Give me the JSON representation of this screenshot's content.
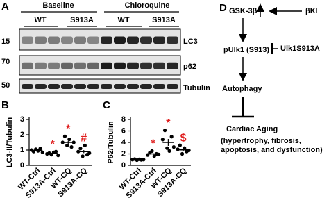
{
  "panel_a": {
    "label": "A",
    "groups": [
      "Baseline",
      "Chloroquine"
    ],
    "genotypes": [
      "WT",
      "S913A",
      "WT",
      "S913A"
    ],
    "markers": [
      "15",
      "70",
      "50"
    ],
    "blots": [
      "LC3",
      "p62",
      "Tubulin"
    ]
  },
  "chart_data": [
    {
      "type": "scatter",
      "panel_label": "B",
      "y_label": "LC3-II/Tubulin",
      "categories": [
        "WT-Ctrl",
        "S913A-Ctrl",
        "WT-CQ",
        "S913A-CQ"
      ],
      "values": [
        [
          1.0,
          0.9,
          1.05,
          0.95,
          1.1,
          0.85
        ],
        [
          0.75,
          0.8,
          0.7,
          0.85,
          0.9,
          0.65
        ],
        [
          1.5,
          1.9,
          1.3,
          1.7,
          1.2,
          1.5
        ],
        [
          0.9,
          1.1,
          0.6,
          1.3,
          0.7,
          0.8
        ]
      ],
      "means": [
        0.98,
        0.78,
        1.5,
        0.9
      ],
      "errors": [
        0.04,
        0.04,
        0.1,
        0.1
      ],
      "annotations": [
        null,
        "*",
        "*",
        "#"
      ],
      "annotation_color": "#e02020",
      "color": "#000000",
      "ylim": [
        0,
        3
      ],
      "yticks": [
        0,
        1,
        2,
        3
      ]
    },
    {
      "type": "scatter",
      "panel_label": "C",
      "y_label": "P62/Tubulin",
      "categories": [
        "WT-Ctrl",
        "S913A-Ctrl",
        "WT-CQ",
        "S913A-CQ"
      ],
      "values": [
        [
          1.0,
          1.1,
          0.9,
          1.05,
          0.95,
          1.0
        ],
        [
          1.8,
          2.2,
          2.5,
          1.6,
          2.0,
          1.9
        ],
        [
          4.5,
          6.1,
          3.0,
          2.5,
          5.0,
          3.2
        ],
        [
          2.8,
          3.5,
          2.0,
          3.0,
          2.4,
          2.6
        ]
      ],
      "means": [
        1.0,
        2.0,
        4.0,
        2.7
      ],
      "errors": [
        0.03,
        0.13,
        0.6,
        0.22
      ],
      "annotations": [
        null,
        "*",
        "*",
        "$"
      ],
      "annotation_color": "#e02020",
      "color": "#000000",
      "ylim": [
        0,
        8
      ],
      "yticks": [
        0,
        2,
        4,
        6,
        8
      ]
    }
  ],
  "panel_d": {
    "label": "D",
    "nodes": [
      "GSK-3β",
      "βKI",
      "pUlk1 (S913)",
      "Ulk1S913A",
      "Autophagy",
      "Cardiac Aging",
      "(hypertrophy, fibrosis,",
      "apoptosis, and dysfunction)"
    ]
  }
}
